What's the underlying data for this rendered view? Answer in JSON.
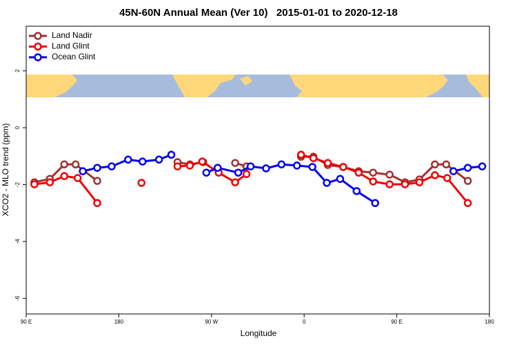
{
  "chart_data": {
    "type": "line",
    "title": "45N-60N Annual Mean (Ver 10)   2015-01-01 to 2020-12-18",
    "xlabel": "Longitude",
    "ylabel": "XCO2 - MLO trend (ppm)",
    "xlim": [
      90,
      540
    ],
    "ylim": [
      -6.55,
      3.57
    ],
    "xticks": [
      {
        "value": 90,
        "label": "90 E"
      },
      {
        "value": 180,
        "label": "180"
      },
      {
        "value": 270,
        "label": "90 W"
      },
      {
        "value": 360,
        "label": "0"
      },
      {
        "value": 450,
        "label": "90 E"
      },
      {
        "value": 540,
        "label": "180"
      }
    ],
    "yticks": [
      2,
      0,
      -2,
      -4,
      -6
    ],
    "grid": false,
    "legend": "top left",
    "series": [
      {
        "name": "Land Nadir",
        "color": "#a03030",
        "x": [
          98,
          113,
          127,
          138,
          159,
          null,
          237,
          249,
          262,
          null,
          293,
          304,
          null,
          357,
          369,
          383,
          398,
          413,
          427,
          443,
          458,
          472,
          487,
          498,
          519
        ],
        "values": [
          -1.92,
          -1.8,
          -1.29,
          -1.29,
          -1.87,
          null,
          -1.21,
          -1.29,
          -1.21,
          null,
          -1.24,
          -1.36,
          null,
          -1.02,
          -1.02,
          -1.31,
          -1.38,
          -1.53,
          -1.58,
          -1.65,
          -1.92,
          -1.82,
          -1.29,
          -1.29,
          -1.87
        ]
      },
      {
        "name": "Land Glint",
        "color": "#ee0000",
        "x": [
          98,
          113,
          127,
          140,
          159,
          null,
          202,
          null,
          237,
          249,
          261,
          277,
          293,
          304,
          null,
          357,
          369,
          383,
          398,
          413,
          427,
          443,
          458,
          472,
          487,
          499,
          519
        ],
        "values": [
          -1.99,
          -1.92,
          -1.7,
          -1.77,
          -2.65,
          null,
          -1.94,
          null,
          -1.36,
          -1.33,
          -1.19,
          -1.58,
          -1.92,
          -1.63,
          null,
          -0.95,
          -1.07,
          -1.24,
          -1.38,
          -1.58,
          -1.89,
          -1.99,
          -1.99,
          -1.92,
          -1.67,
          -1.77,
          -2.65
        ]
      },
      {
        "name": "Ocean Glint",
        "color": "#0000ee",
        "x": [
          145,
          159,
          173,
          189,
          203,
          219,
          231,
          null,
          265,
          276,
          296,
          308,
          323,
          338,
          353,
          368,
          382,
          395,
          411,
          429,
          null,
          505,
          519,
          533
        ],
        "values": [
          -1.53,
          -1.41,
          -1.36,
          -1.12,
          -1.19,
          -1.12,
          -0.95,
          null,
          -1.58,
          -1.41,
          -1.58,
          -1.36,
          -1.43,
          -1.29,
          -1.33,
          -1.38,
          -1.94,
          -1.8,
          -2.23,
          -2.65,
          null,
          -1.53,
          -1.41,
          -1.36
        ]
      }
    ]
  }
}
